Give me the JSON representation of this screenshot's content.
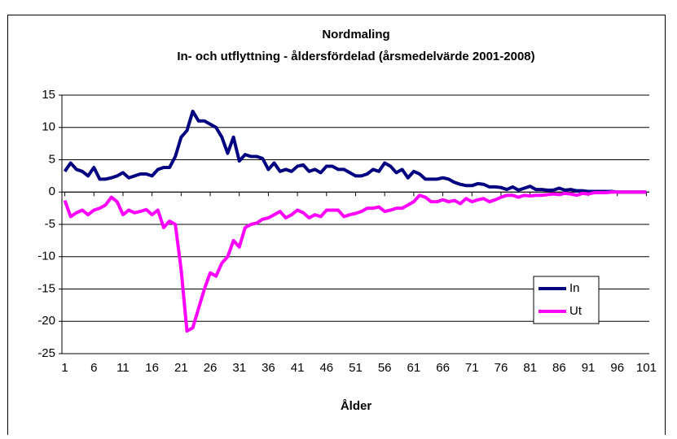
{
  "chart_data": {
    "type": "line",
    "title": "Nordmaling",
    "subtitle": "In- och utflyttning - åldersfördelad (årsmedelvärde 2001-2008)",
    "x_label": "Ålder",
    "x": [
      1,
      2,
      3,
      4,
      5,
      6,
      7,
      8,
      9,
      10,
      11,
      12,
      13,
      14,
      15,
      16,
      17,
      18,
      19,
      20,
      21,
      22,
      23,
      24,
      25,
      26,
      27,
      28,
      29,
      30,
      31,
      32,
      33,
      34,
      35,
      36,
      37,
      38,
      39,
      40,
      41,
      42,
      43,
      44,
      45,
      46,
      47,
      48,
      49,
      50,
      51,
      52,
      53,
      54,
      55,
      56,
      57,
      58,
      59,
      60,
      61,
      62,
      63,
      64,
      65,
      66,
      67,
      68,
      69,
      70,
      71,
      72,
      73,
      74,
      75,
      76,
      77,
      78,
      79,
      80,
      81,
      82,
      83,
      84,
      85,
      86,
      87,
      88,
      89,
      90,
      91,
      92,
      93,
      94,
      95,
      96,
      97,
      98,
      99,
      100,
      101
    ],
    "xlim": [
      0.5,
      101.5
    ],
    "xticks": [
      1,
      6,
      11,
      16,
      21,
      26,
      31,
      36,
      41,
      46,
      51,
      56,
      61,
      66,
      71,
      76,
      81,
      86,
      91,
      96,
      101
    ],
    "ylim": [
      -25,
      15
    ],
    "yticks": [
      -25,
      -20,
      -15,
      -10,
      -5,
      0,
      5,
      10,
      15
    ],
    "grid": true,
    "legend": "lower right",
    "series": [
      {
        "name": "In",
        "color": "#000080",
        "values": [
          3.2,
          4.5,
          3.5,
          3.2,
          2.5,
          3.8,
          2.0,
          2.0,
          2.2,
          2.5,
          3.0,
          2.2,
          2.5,
          2.8,
          2.8,
          2.5,
          3.5,
          3.8,
          3.8,
          5.5,
          8.5,
          9.5,
          12.5,
          11.0,
          11.0,
          10.5,
          10.0,
          8.5,
          6.0,
          8.5,
          4.8,
          5.8,
          5.5,
          5.5,
          5.2,
          3.5,
          4.5,
          3.2,
          3.5,
          3.2,
          4.0,
          4.2,
          3.2,
          3.5,
          3.0,
          4.0,
          4.0,
          3.5,
          3.5,
          3.0,
          2.5,
          2.5,
          2.8,
          3.5,
          3.2,
          4.5,
          4.0,
          3.0,
          3.5,
          2.2,
          3.2,
          2.8,
          2.0,
          2.0,
          2.0,
          2.2,
          2.0,
          1.5,
          1.2,
          1.0,
          1.0,
          1.3,
          1.2,
          0.8,
          0.8,
          0.7,
          0.4,
          0.8,
          0.3,
          0.6,
          0.9,
          0.4,
          0.4,
          0.3,
          0.3,
          0.6,
          0.3,
          0.4,
          0.2,
          0.2,
          0.1,
          0.1,
          0.1,
          0.1,
          0.1,
          0,
          0,
          0,
          0,
          0,
          0
        ]
      },
      {
        "name": "Ut",
        "color": "#ff00ff",
        "values": [
          -1.3,
          -3.8,
          -3.2,
          -2.8,
          -3.5,
          -2.8,
          -2.5,
          -2.0,
          -0.8,
          -1.5,
          -3.5,
          -2.8,
          -3.2,
          -3.0,
          -2.7,
          -3.5,
          -2.8,
          -5.5,
          -4.5,
          -5.0,
          -12.0,
          -21.5,
          -21.0,
          -18.0,
          -15.0,
          -12.5,
          -13.0,
          -11.0,
          -10.0,
          -7.5,
          -8.5,
          -5.5,
          -5.0,
          -4.8,
          -4.2,
          -4.0,
          -3.5,
          -3.0,
          -4.0,
          -3.5,
          -2.8,
          -3.2,
          -4.0,
          -3.5,
          -3.8,
          -2.8,
          -2.8,
          -2.8,
          -3.8,
          -3.5,
          -3.3,
          -3.0,
          -2.5,
          -2.5,
          -2.3,
          -3.0,
          -2.8,
          -2.5,
          -2.5,
          -2.0,
          -1.5,
          -0.5,
          -0.8,
          -1.5,
          -1.5,
          -1.2,
          -1.5,
          -1.3,
          -1.8,
          -1.0,
          -1.5,
          -1.2,
          -1.0,
          -1.5,
          -1.2,
          -0.8,
          -0.5,
          -0.5,
          -0.8,
          -0.5,
          -0.6,
          -0.5,
          -0.5,
          -0.4,
          -0.3,
          -0.4,
          -0.2,
          -0.3,
          -0.5,
          -0.2,
          -0.3,
          -0.1,
          -0.1,
          -0.1,
          0,
          0,
          0,
          0,
          0,
          0,
          0
        ]
      }
    ]
  }
}
